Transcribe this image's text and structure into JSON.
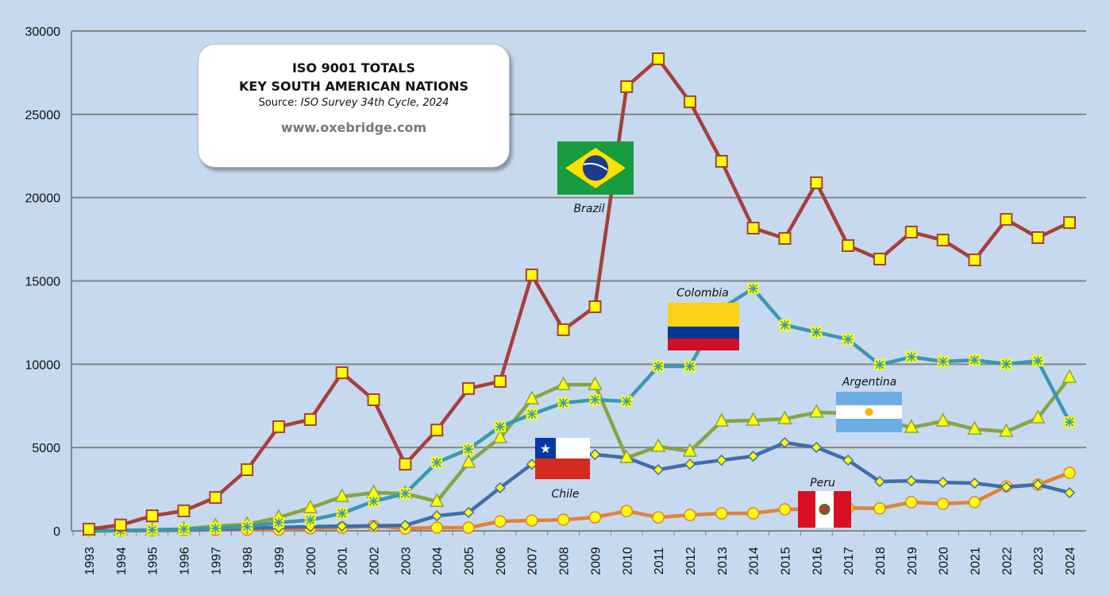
{
  "chart_data": {
    "type": "line",
    "title": "ISO 9001 TOTALS",
    "subtitle": "KEY SOUTH AMERICAN NATIONS",
    "source_label": "Source:",
    "source": "ISO Survey 34th Cycle, 2024",
    "website": "www.oxebridge.com",
    "xlabel": "",
    "ylabel": "",
    "ylim": [
      0,
      30000
    ],
    "yticks": [
      "0",
      "5000",
      "10000",
      "15000",
      "20000",
      "25000",
      "30000"
    ],
    "grid": true,
    "x": [
      "1993",
      "1994",
      "1995",
      "1996",
      "1997",
      "1998",
      "1999",
      "2000",
      "2001",
      "2002",
      "2003",
      "2004",
      "2005",
      "2006",
      "2007",
      "2008",
      "2009",
      "2010",
      "2011",
      "2012",
      "2013",
      "2014",
      "2015",
      "2016",
      "2017",
      "2018",
      "2019",
      "2020",
      "2021",
      "2022",
      "2023",
      "2024"
    ],
    "series": [
      {
        "name": "Brazil",
        "color": "#a63f3b",
        "marker": "square",
        "values": [
          100,
          350,
          900,
          1200,
          2000,
          3670,
          6250,
          6680,
          9490,
          7870,
          4000,
          6050,
          8540,
          8970,
          15360,
          12070,
          13450,
          26660,
          28330,
          25750,
          22180,
          18170,
          17550,
          20890,
          17120,
          16310,
          17930,
          17450,
          16260,
          18690,
          17600,
          18500
        ]
      },
      {
        "name": "Colombia",
        "color": "#3a98b0",
        "marker": "asterisk-square",
        "values": [
          0,
          20,
          60,
          100,
          150,
          250,
          500,
          650,
          1050,
          1770,
          2240,
          4100,
          4900,
          6250,
          7000,
          7680,
          7870,
          7770,
          9870,
          9870,
          13350,
          14540,
          12350,
          11920,
          11490,
          9970,
          10440,
          10160,
          10250,
          10010,
          10200,
          6530
        ]
      },
      {
        "name": "Argentina",
        "color": "#86a444",
        "marker": "triangle",
        "values": [
          0,
          30,
          50,
          100,
          290,
          380,
          800,
          1380,
          2050,
          2290,
          2240,
          1760,
          4100,
          5580,
          7920,
          8770,
          8770,
          4390,
          5060,
          4770,
          6580,
          6630,
          6720,
          7110,
          7060,
          6700,
          6200,
          6580,
          6100,
          5960,
          6770,
          9200
        ]
      },
      {
        "name": "Chile",
        "color": "#3f6da8",
        "marker": "diamond",
        "values": [
          0,
          10,
          30,
          60,
          100,
          150,
          200,
          250,
          280,
          300,
          330,
          900,
          1100,
          2580,
          4000,
          4670,
          4580,
          4390,
          3670,
          4000,
          4240,
          4480,
          5290,
          5010,
          4240,
          2960,
          3000,
          2910,
          2860,
          2620,
          2770,
          2290
        ]
      },
      {
        "name": "Peru",
        "color": "#e0823a",
        "marker": "circle",
        "values": [
          0,
          10,
          20,
          40,
          60,
          70,
          80,
          150,
          190,
          290,
          140,
          190,
          190,
          570,
          620,
          670,
          810,
          1190,
          810,
          950,
          1050,
          1050,
          1290,
          1300,
          1380,
          1340,
          1720,
          1620,
          1720,
          2670,
          2770,
          3480
        ]
      }
    ]
  }
}
